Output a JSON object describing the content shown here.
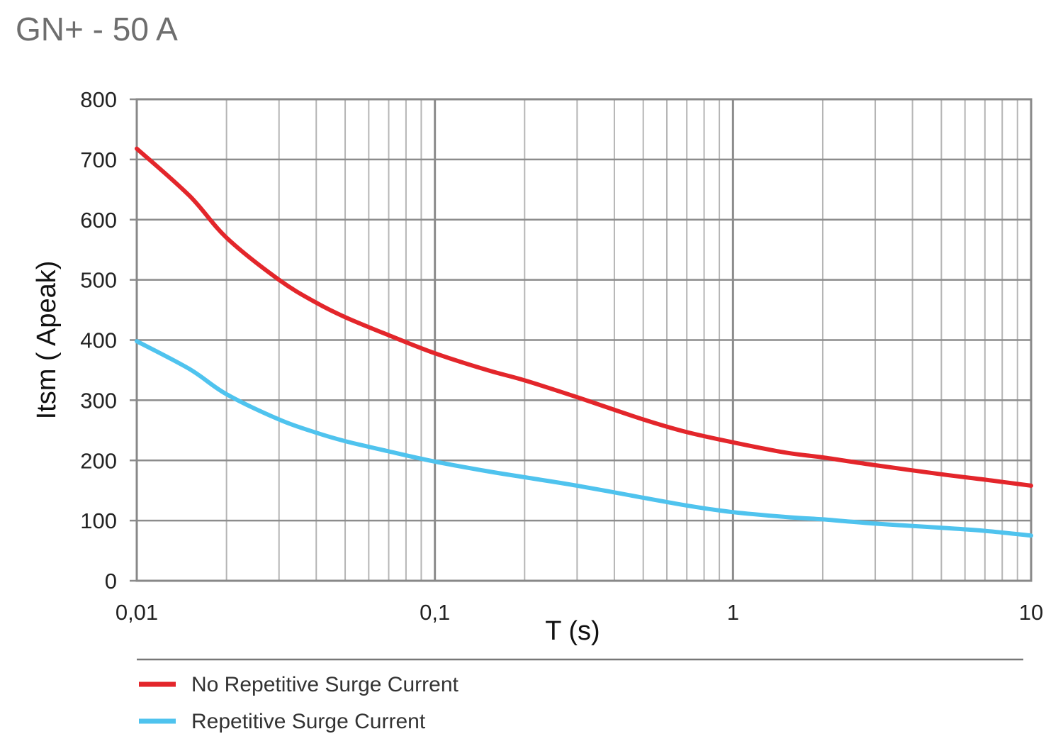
{
  "chart_data": {
    "type": "line",
    "title": "GN+ - 50 A",
    "xlabel": "T (s)",
    "ylabel": "Itsm ( Apeak)",
    "xscale": "log",
    "xlim": [
      0.01,
      10
    ],
    "ylim": [
      0,
      800
    ],
    "xticks": [
      {
        "value": 0.01,
        "label": "0,01"
      },
      {
        "value": 0.1,
        "label": "0,1"
      },
      {
        "value": 1,
        "label": "1"
      },
      {
        "value": 10,
        "label": "10"
      }
    ],
    "yticks": [
      {
        "value": 0,
        "label": "0"
      },
      {
        "value": 100,
        "label": "100"
      },
      {
        "value": 200,
        "label": "200"
      },
      {
        "value": 300,
        "label": "300"
      },
      {
        "value": 400,
        "label": "400"
      },
      {
        "value": 500,
        "label": "500"
      },
      {
        "value": 600,
        "label": "600"
      },
      {
        "value": 700,
        "label": "700"
      },
      {
        "value": 800,
        "label": "800"
      }
    ],
    "grid": true,
    "legend_position": "bottom",
    "series": [
      {
        "name": "No Repetitive Surge Current",
        "color": "#e3262b",
        "x": [
          0.01,
          0.015,
          0.02,
          0.03,
          0.04,
          0.05,
          0.07,
          0.1,
          0.15,
          0.2,
          0.3,
          0.5,
          0.7,
          1,
          1.5,
          2,
          3,
          5,
          7,
          10
        ],
        "y": [
          718,
          640,
          570,
          500,
          462,
          438,
          408,
          378,
          350,
          333,
          305,
          268,
          247,
          230,
          213,
          205,
          192,
          177,
          168,
          158
        ]
      },
      {
        "name": "Repetitive Surge Current",
        "color": "#4fc3ee",
        "x": [
          0.01,
          0.015,
          0.02,
          0.03,
          0.04,
          0.05,
          0.07,
          0.1,
          0.15,
          0.2,
          0.3,
          0.5,
          0.7,
          1,
          1.5,
          2,
          3,
          5,
          7,
          10
        ],
        "y": [
          398,
          352,
          310,
          268,
          246,
          232,
          215,
          198,
          182,
          172,
          158,
          138,
          125,
          114,
          106,
          102,
          95,
          88,
          83,
          75
        ]
      }
    ]
  }
}
